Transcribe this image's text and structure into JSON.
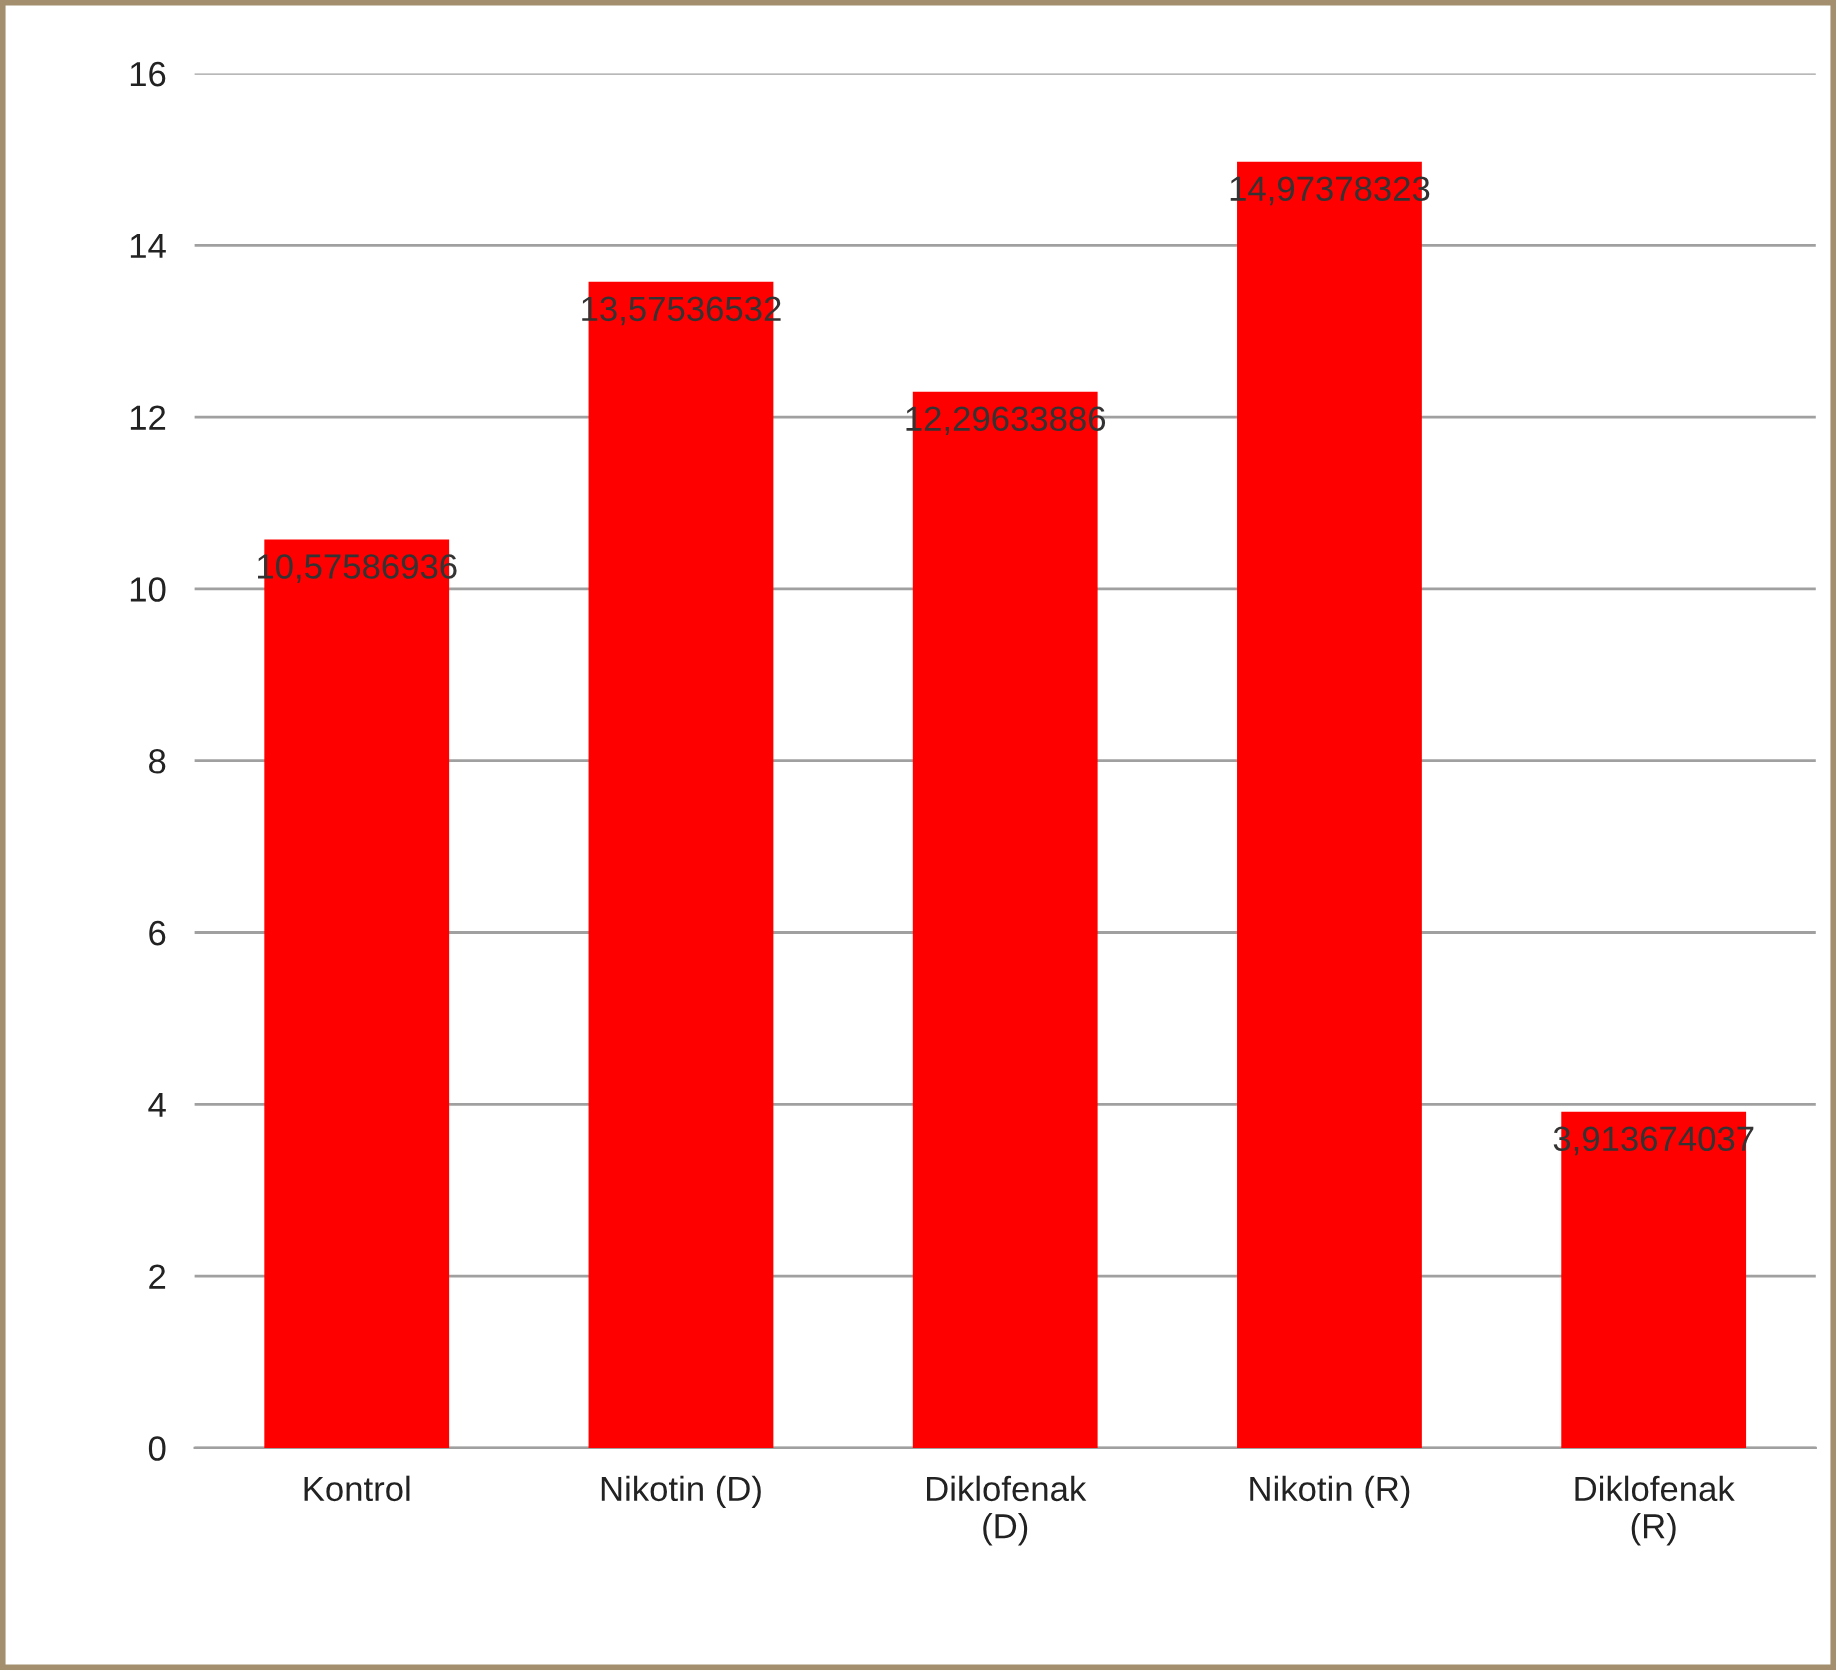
{
  "chart_data": {
    "type": "bar",
    "categories": [
      "Kontrol",
      "Nikotin (D)",
      "Diklofenak (D)",
      "Nikotin (R)",
      "Diklofenak (R)"
    ],
    "values": [
      10.57586936,
      13.57536532,
      12.29633886,
      14.97378323,
      3.913674037
    ],
    "value_labels": [
      "10,57586936",
      "13,57536532",
      "12,29633886",
      "14,97378323",
      "3,913674037"
    ],
    "color": "#ff0000",
    "ylim": [
      0,
      16
    ],
    "yticks": [
      0,
      2,
      4,
      6,
      8,
      10,
      12,
      14,
      16
    ],
    "grid": "y",
    "legend": false
  }
}
